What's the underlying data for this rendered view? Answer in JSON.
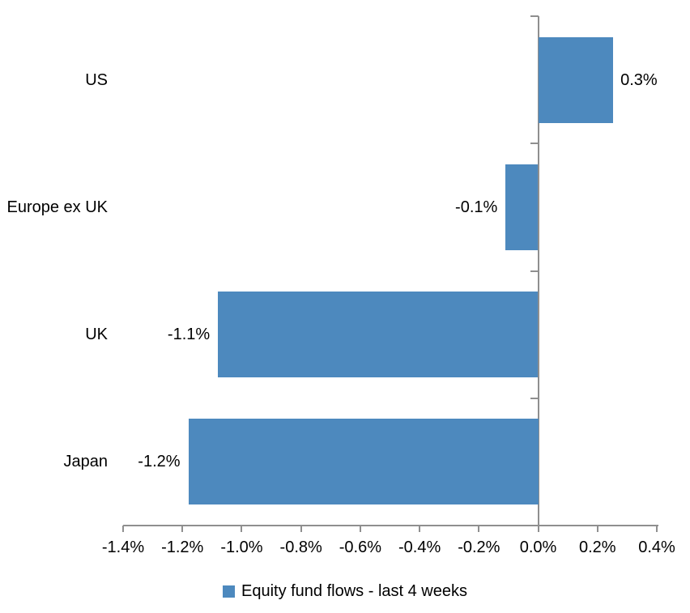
{
  "legend": {
    "label": "Equity fund flows - last 4 weeks"
  },
  "chart_data": {
    "type": "bar",
    "orientation": "horizontal",
    "title": "",
    "xlabel": "",
    "ylabel": "",
    "categories": [
      "US",
      "Europe ex UK",
      "UK",
      "Japan"
    ],
    "series": [
      {
        "name": "Equity fund flows - last 4 weeks",
        "values": [
          0.25,
          -0.11,
          -1.08,
          -1.18
        ],
        "data_labels": [
          "0.3%",
          "-0.1%",
          "-1.1%",
          "-1.2%"
        ]
      }
    ],
    "value_unit": "%",
    "xlim": [
      -1.4,
      0.4
    ],
    "x_ticks": [
      -1.4,
      -1.2,
      -1.0,
      -0.8,
      -0.6,
      -0.4,
      -0.2,
      0.0,
      0.2,
      0.4
    ],
    "x_tick_labels": [
      "-1.4%",
      "-1.2%",
      "-1.0%",
      "-0.8%",
      "-0.6%",
      "-0.4%",
      "-0.2%",
      "0.0%",
      "0.2%",
      "0.4%"
    ],
    "grid": false,
    "legend_position": "bottom",
    "colors": {
      "bar": "#4d89be",
      "axis": "#8f8f8f",
      "tick": "#8f8f8f",
      "text": "#000000",
      "background": "#ffffff"
    }
  }
}
